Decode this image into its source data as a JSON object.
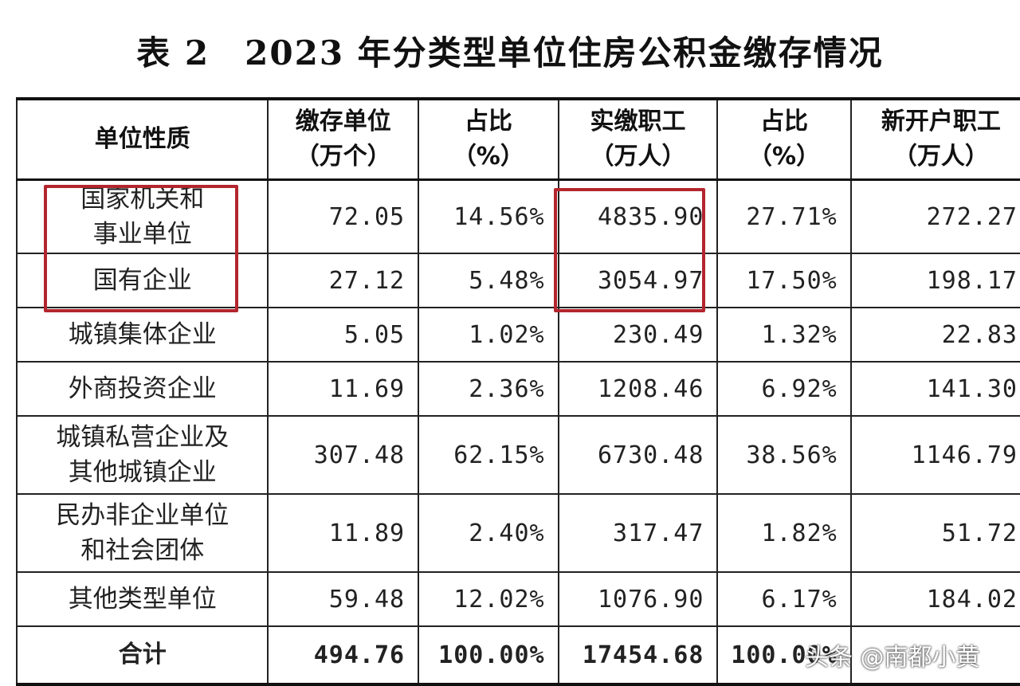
{
  "title": {
    "table_no": "表 2",
    "text": "2023 年分类型单位住房公积金缴存情况"
  },
  "headers": {
    "col0": "单位性质",
    "col1_l1": "缴存单位",
    "col1_l2": "（万个）",
    "col2_l1": "占比",
    "col2_l2": "（%）",
    "col3_l1": "实缴职工",
    "col3_l2": "（万人）",
    "col4_l1": "占比",
    "col4_l2": "（%）",
    "col5_l1": "新开户职工",
    "col5_l2": "（万人）"
  },
  "rows": [
    {
      "name_l1": "国家机关和",
      "name_l2": "事业单位",
      "units": "72.05",
      "units_pct": "14.56%",
      "workers": "4835.90",
      "workers_pct": "27.71%",
      "new_workers": "272.27"
    },
    {
      "name_l1": "国有企业",
      "name_l2": "",
      "units": "27.12",
      "units_pct": "5.48%",
      "workers": "3054.97",
      "workers_pct": "17.50%",
      "new_workers": "198.17"
    },
    {
      "name_l1": "城镇集体企业",
      "name_l2": "",
      "units": "5.05",
      "units_pct": "1.02%",
      "workers": "230.49",
      "workers_pct": "1.32%",
      "new_workers": "22.83"
    },
    {
      "name_l1": "外商投资企业",
      "name_l2": "",
      "units": "11.69",
      "units_pct": "2.36%",
      "workers": "1208.46",
      "workers_pct": "6.92%",
      "new_workers": "141.30"
    },
    {
      "name_l1": "城镇私营企业及",
      "name_l2": "其他城镇企业",
      "units": "307.48",
      "units_pct": "62.15%",
      "workers": "6730.48",
      "workers_pct": "38.56%",
      "new_workers": "1146.79"
    },
    {
      "name_l1": "民办非企业单位",
      "name_l2": "和社会团体",
      "units": "11.89",
      "units_pct": "2.40%",
      "workers": "317.47",
      "workers_pct": "1.82%",
      "new_workers": "51.72"
    },
    {
      "name_l1": "其他类型单位",
      "name_l2": "",
      "units": "59.48",
      "units_pct": "12.02%",
      "workers": "1076.90",
      "workers_pct": "6.17%",
      "new_workers": "184.02"
    }
  ],
  "total": {
    "name": "合计",
    "units": "494.76",
    "units_pct": "100.00%",
    "workers": "17454.68",
    "workers_pct": "100.00%"
  },
  "watermark": "头条 @南都小黄",
  "colors": {
    "highlight": "#b3262e"
  }
}
